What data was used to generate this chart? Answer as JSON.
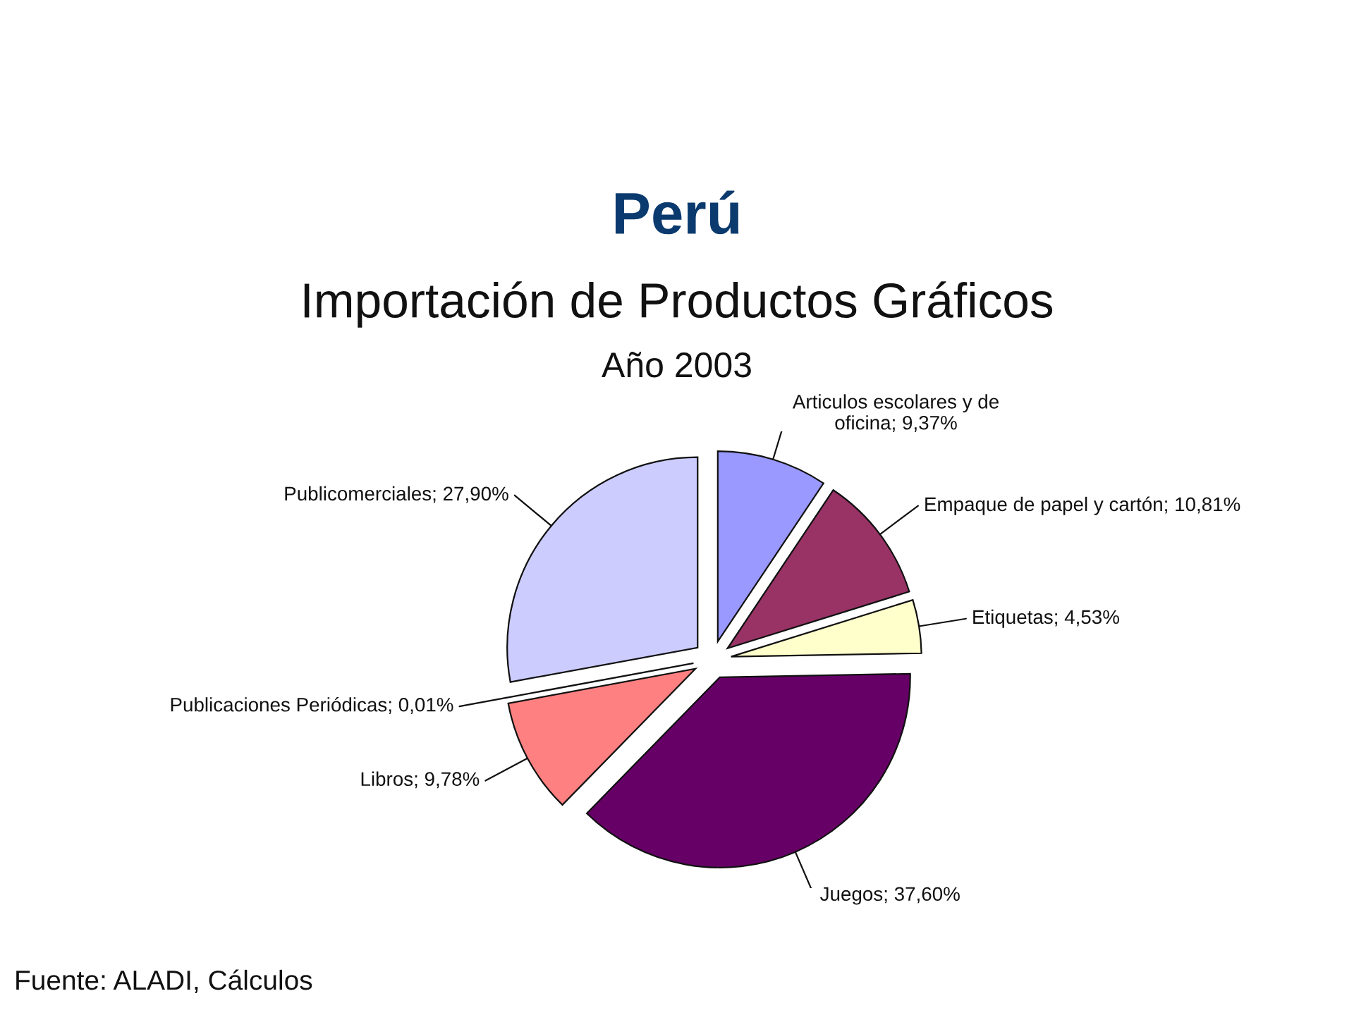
{
  "chart_data": {
    "type": "pie",
    "title": "Perú",
    "subtitle": "Importación de Productos Gráficos",
    "annotations": [
      "Año 2003",
      "Fuente: ALADI, Cálculos"
    ],
    "categories": [
      "Articulos escolares y de oficina",
      "Empaque de papel y cartón",
      "Etiquetas",
      "Juegos",
      "Libros",
      "Publicaciones Periódicas",
      "Publicomerciales"
    ],
    "values": [
      9.37,
      10.81,
      4.53,
      37.6,
      9.78,
      0.01,
      27.9
    ],
    "value_labels": [
      "9,37%",
      "10,81%",
      "4,53%",
      "37,60%",
      "9,78%",
      "0,01%",
      "27,90%"
    ],
    "colors": [
      "#9999ff",
      "#993366",
      "#ffffcc",
      "#660066",
      "#ff8080",
      "#0066cc",
      "#ccccff"
    ]
  }
}
